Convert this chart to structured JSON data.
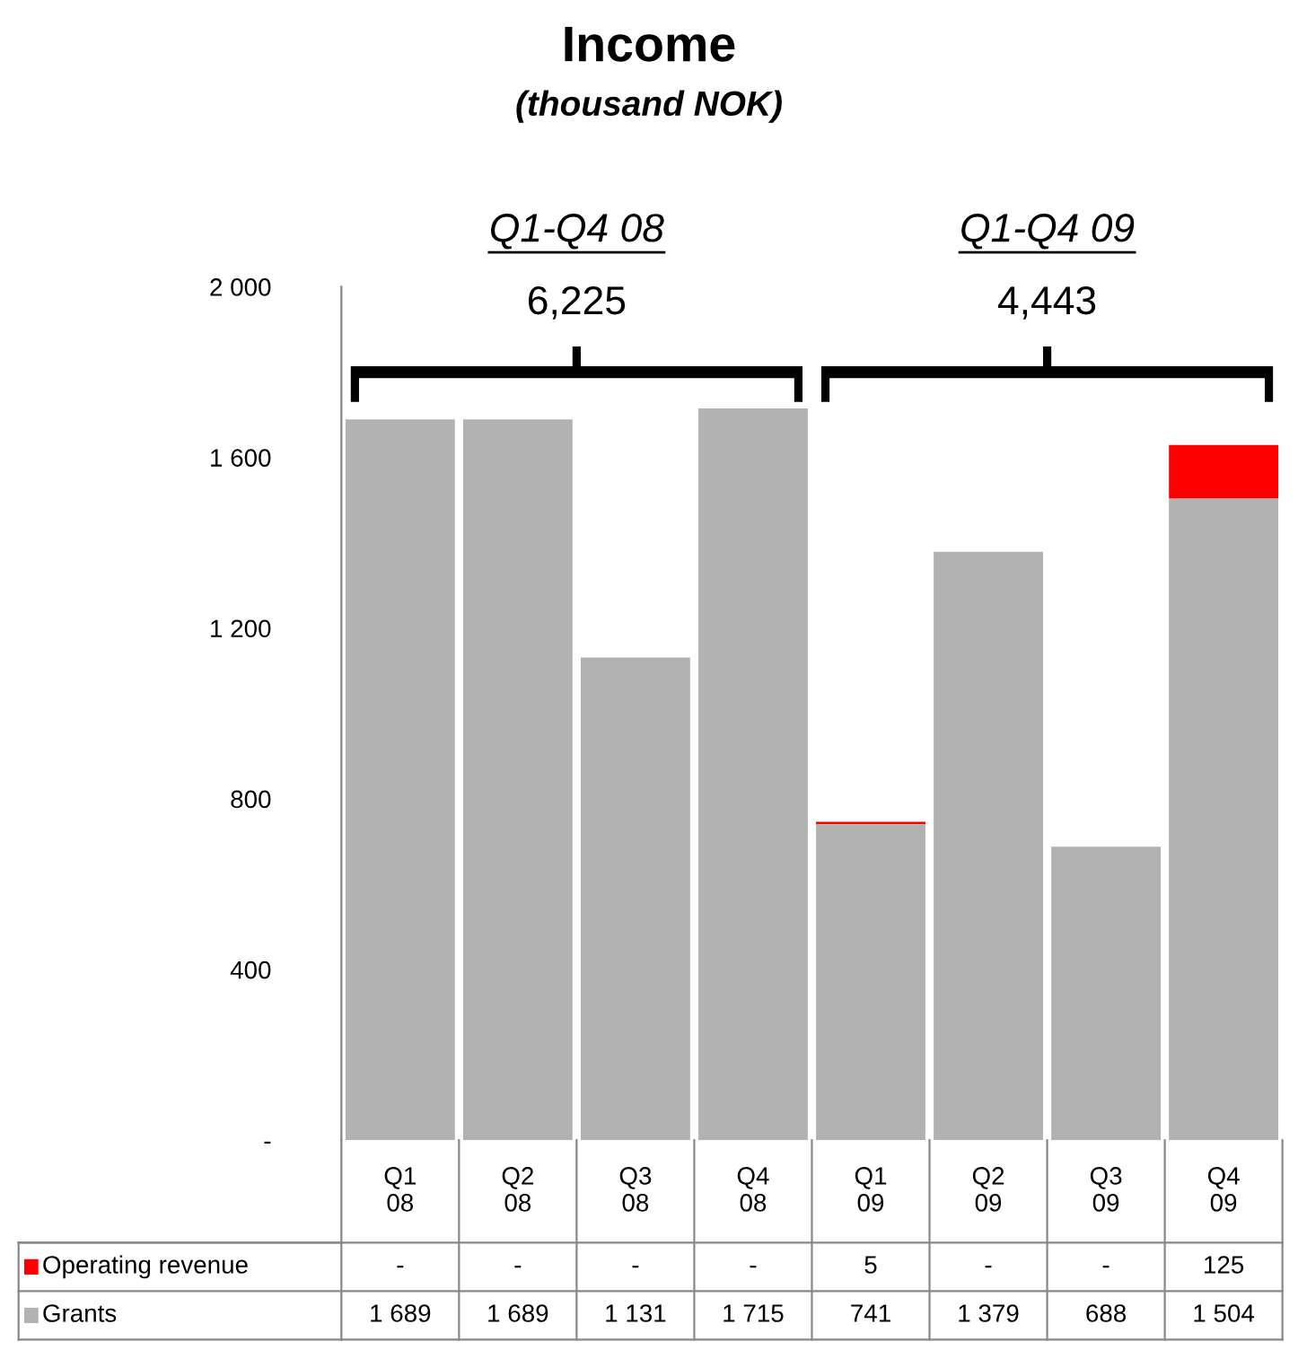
{
  "chart_data": {
    "type": "bar",
    "title": "Income",
    "subtitle": "(thousand NOK)",
    "categories": [
      "Q1\n08",
      "Q2\n08",
      "Q3\n08",
      "Q4\n08",
      "Q1\n09",
      "Q2\n09",
      "Q3\n09",
      "Q4\n09"
    ],
    "stacked": true,
    "series": [
      {
        "name": "Grants",
        "color": "#b2b2b2",
        "values": [
          1689,
          1689,
          1131,
          1715,
          741,
          1379,
          688,
          1504
        ],
        "value_labels": [
          "1 689",
          "1 689",
          "1 131",
          "1 715",
          "741",
          "1 379",
          "688",
          "1 504"
        ]
      },
      {
        "name": "Operating revenue",
        "color": "#ff0000",
        "values": [
          0,
          0,
          0,
          0,
          5,
          0,
          0,
          125
        ],
        "value_labels": [
          "-",
          "-",
          "-",
          "-",
          "5",
          "-",
          "-",
          "125"
        ]
      }
    ],
    "ylim": [
      0,
      2000
    ],
    "yticks": [
      {
        "value": 0,
        "label": "-"
      },
      400,
      800,
      {
        "value": 1200,
        "label": "1 200"
      },
      {
        "value": 1600,
        "label": "1 600"
      },
      {
        "value": 2000,
        "label": "2 000"
      }
    ],
    "annotations": [
      "Q1-Q4 08",
      "6,225",
      "Q1-Q4 09",
      "4,443"
    ],
    "legend": "bottom",
    "grid": false
  }
}
